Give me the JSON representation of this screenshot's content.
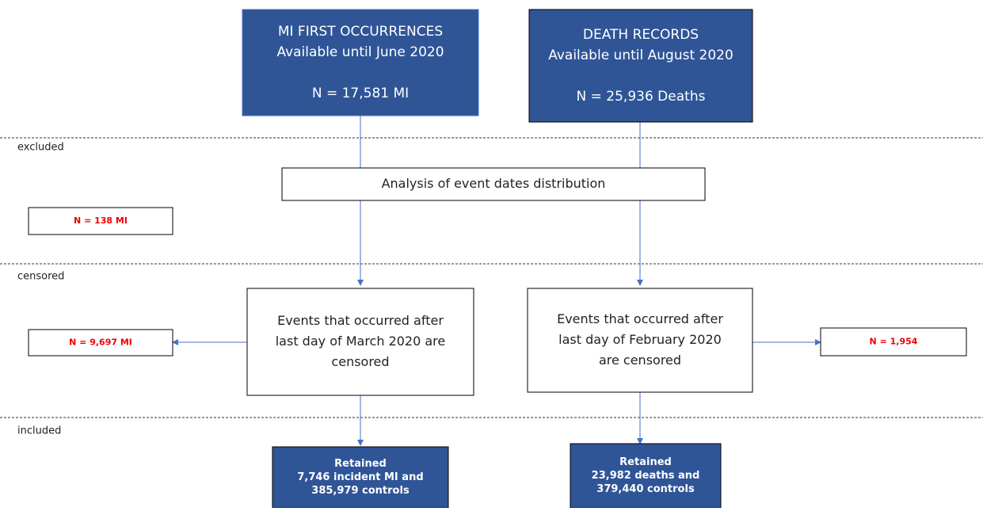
{
  "nodes": [
    {
      "id": "mi",
      "lines": [
        "MI FIRST OCCURRENCES",
        "Available until June 2020",
        "",
        "N = 17,581 MI"
      ]
    },
    {
      "id": "death",
      "lines": [
        "DEATH RECORDS",
        "Available until August 2020",
        "",
        "N = 25,936 Deaths"
      ]
    },
    {
      "id": "analysis",
      "lines": [
        "Analysis of event dates distribution"
      ]
    },
    {
      "id": "excl_mi",
      "lines": [
        "N = 138 MI"
      ]
    },
    {
      "id": "cens_mi",
      "lines": [
        "Events that occurred after",
        "last day of March 2020 are",
        "censored"
      ]
    },
    {
      "id": "cens_death",
      "lines": [
        "Events that occurred after",
        "last day of February 2020",
        "are censored"
      ]
    },
    {
      "id": "cens_mi_n",
      "lines": [
        "N = 9,697 MI"
      ]
    },
    {
      "id": "cens_death_n",
      "lines": [
        "N = 1,954"
      ]
    },
    {
      "id": "ret_mi",
      "lines": [
        "Retained",
        "7,746 incident MI and",
        "385,979 controls"
      ]
    },
    {
      "id": "ret_death",
      "lines": [
        "Retained",
        "23,982 deaths and",
        "379,440 controls"
      ]
    }
  ],
  "sections": [
    "excluded",
    "censored",
    "included"
  ]
}
